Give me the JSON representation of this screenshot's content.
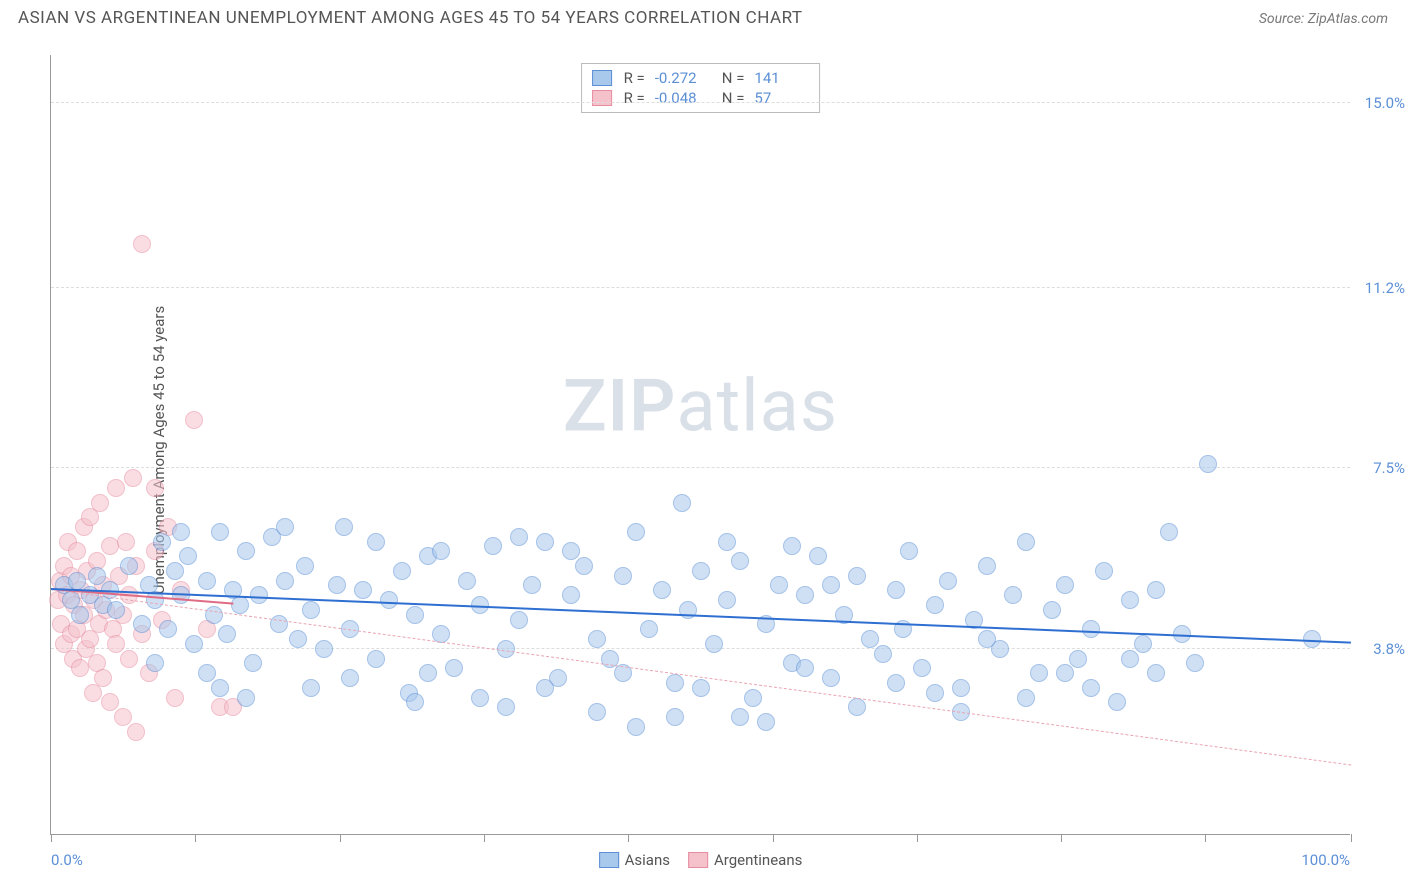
{
  "title": "ASIAN VS ARGENTINEAN UNEMPLOYMENT AMONG AGES 45 TO 54 YEARS CORRELATION CHART",
  "source": "Source: ZipAtlas.com",
  "watermark_a": "ZIP",
  "watermark_b": "atlas",
  "chart": {
    "type": "scatter",
    "y_axis_title": "Unemployment Among Ages 45 to 54 years",
    "x_min": 0.0,
    "x_max": 100.0,
    "y_min": 0.0,
    "y_max": 16.0,
    "x_label_min": "0.0%",
    "x_label_max": "100.0%",
    "y_gridlines": [
      {
        "value": 3.8,
        "label": "3.8%"
      },
      {
        "value": 7.5,
        "label": "7.5%"
      },
      {
        "value": 11.2,
        "label": "11.2%"
      },
      {
        "value": 15.0,
        "label": "15.0%"
      }
    ],
    "x_ticks": [
      0,
      11.1,
      22.2,
      33.3,
      44.4,
      55.5,
      66.6,
      77.7,
      88.8,
      100
    ],
    "point_radius": 9,
    "point_opacity": 0.55,
    "series": [
      {
        "name": "Asians",
        "legend_label": "Asians",
        "fill": "#a8c8ec",
        "stroke": "#5b8fd6",
        "r_value": "-0.272",
        "n_value": "141",
        "trend": {
          "x1": 0,
          "y1": 5.0,
          "x2": 100,
          "y2": 3.9,
          "width": 2.5,
          "dash": "solid",
          "color": "#2e6fd1"
        },
        "ext_trend": {
          "x1": 0,
          "y1": 5.0,
          "x2": 100,
          "y2": 1.4,
          "width": 1,
          "dash": "dashed",
          "color": "#e9a5b3"
        },
        "points": [
          [
            1,
            5.1
          ],
          [
            1.5,
            4.8
          ],
          [
            2,
            5.2
          ],
          [
            2.2,
            4.5
          ],
          [
            3,
            4.9
          ],
          [
            3.5,
            5.3
          ],
          [
            4,
            4.7
          ],
          [
            4.5,
            5.0
          ],
          [
            5,
            4.6
          ],
          [
            6,
            5.5
          ],
          [
            7,
            4.3
          ],
          [
            7.5,
            5.1
          ],
          [
            8,
            4.8
          ],
          [
            8.5,
            6.0
          ],
          [
            9,
            4.2
          ],
          [
            9.5,
            5.4
          ],
          [
            10,
            4.9
          ],
          [
            10.5,
            5.7
          ],
          [
            11,
            3.9
          ],
          [
            12,
            5.2
          ],
          [
            12.5,
            4.5
          ],
          [
            13,
            6.2
          ],
          [
            13.5,
            4.1
          ],
          [
            14,
            5.0
          ],
          [
            14.5,
            4.7
          ],
          [
            15,
            5.8
          ],
          [
            15.5,
            3.5
          ],
          [
            16,
            4.9
          ],
          [
            17,
            6.1
          ],
          [
            17.5,
            4.3
          ],
          [
            18,
            5.2
          ],
          [
            19,
            4.0
          ],
          [
            19.5,
            5.5
          ],
          [
            20,
            4.6
          ],
          [
            21,
            3.8
          ],
          [
            22,
            5.1
          ],
          [
            22.5,
            6.3
          ],
          [
            23,
            4.2
          ],
          [
            24,
            5.0
          ],
          [
            25,
            3.6
          ],
          [
            26,
            4.8
          ],
          [
            27,
            5.4
          ],
          [
            27.5,
            2.9
          ],
          [
            28,
            4.5
          ],
          [
            29,
            5.7
          ],
          [
            30,
            4.1
          ],
          [
            31,
            3.4
          ],
          [
            32,
            5.2
          ],
          [
            33,
            4.7
          ],
          [
            34,
            5.9
          ],
          [
            35,
            3.8
          ],
          [
            36,
            4.4
          ],
          [
            37,
            5.1
          ],
          [
            38,
            6.0
          ],
          [
            39,
            3.2
          ],
          [
            40,
            4.9
          ],
          [
            41,
            5.5
          ],
          [
            42,
            4.0
          ],
          [
            43,
            3.6
          ],
          [
            44,
            5.3
          ],
          [
            45,
            6.2
          ],
          [
            46,
            4.2
          ],
          [
            47,
            5.0
          ],
          [
            48,
            3.1
          ],
          [
            48.5,
            6.8
          ],
          [
            49,
            4.6
          ],
          [
            50,
            5.4
          ],
          [
            51,
            3.9
          ],
          [
            52,
            4.8
          ],
          [
            53,
            5.6
          ],
          [
            54,
            2.8
          ],
          [
            55,
            4.3
          ],
          [
            56,
            5.1
          ],
          [
            57,
            3.5
          ],
          [
            58,
            4.9
          ],
          [
            59,
            5.7
          ],
          [
            60,
            3.2
          ],
          [
            61,
            4.5
          ],
          [
            62,
            5.3
          ],
          [
            63,
            4.0
          ],
          [
            64,
            3.7
          ],
          [
            65,
            5.0
          ],
          [
            65.5,
            4.2
          ],
          [
            66,
            5.8
          ],
          [
            67,
            3.4
          ],
          [
            68,
            4.7
          ],
          [
            69,
            5.2
          ],
          [
            70,
            3.0
          ],
          [
            71,
            4.4
          ],
          [
            72,
            5.5
          ],
          [
            73,
            3.8
          ],
          [
            74,
            4.9
          ],
          [
            75,
            6.0
          ],
          [
            76,
            3.3
          ],
          [
            77,
            4.6
          ],
          [
            78,
            5.1
          ],
          [
            79,
            3.6
          ],
          [
            80,
            4.2
          ],
          [
            81,
            5.4
          ],
          [
            82,
            2.7
          ],
          [
            83,
            4.8
          ],
          [
            84,
            3.9
          ],
          [
            85,
            5.0
          ],
          [
            86,
            6.2
          ],
          [
            87,
            4.1
          ],
          [
            88,
            3.5
          ],
          [
            89,
            7.6
          ],
          [
            97,
            4.0
          ],
          [
            42,
            2.5
          ],
          [
            53,
            2.4
          ],
          [
            62,
            2.6
          ],
          [
            70,
            2.5
          ],
          [
            55,
            2.3
          ],
          [
            35,
            2.6
          ],
          [
            48,
            2.4
          ],
          [
            75,
            2.8
          ],
          [
            80,
            3.0
          ],
          [
            15,
            2.8
          ],
          [
            20,
            3.0
          ],
          [
            28,
            2.7
          ],
          [
            33,
            2.8
          ],
          [
            68,
            2.9
          ],
          [
            45,
            2.2
          ],
          [
            57,
            5.9
          ],
          [
            38,
            3.0
          ],
          [
            25,
            6.0
          ],
          [
            18,
            6.3
          ],
          [
            30,
            5.8
          ],
          [
            13,
            3.0
          ],
          [
            50,
            3.0
          ],
          [
            60,
            5.1
          ],
          [
            40,
            5.8
          ],
          [
            23,
            3.2
          ],
          [
            72,
            4.0
          ],
          [
            78,
            3.3
          ],
          [
            83,
            3.6
          ],
          [
            85,
            3.3
          ],
          [
            65,
            3.1
          ],
          [
            58,
            3.4
          ],
          [
            44,
            3.3
          ],
          [
            52,
            6.0
          ],
          [
            36,
            6.1
          ],
          [
            29,
            3.3
          ],
          [
            10,
            6.2
          ],
          [
            12,
            3.3
          ],
          [
            8,
            3.5
          ]
        ]
      },
      {
        "name": "Argentineans",
        "legend_label": "Argentineans",
        "fill": "#f5c2cc",
        "stroke": "#e88ca0",
        "r_value": "-0.048",
        "n_value": "57",
        "trend": {
          "x1": 0,
          "y1": 5.0,
          "x2": 14,
          "y2": 4.7,
          "width": 2.5,
          "dash": "solid",
          "color": "#e06b85"
        },
        "points": [
          [
            0.5,
            4.8
          ],
          [
            0.7,
            5.2
          ],
          [
            0.8,
            4.3
          ],
          [
            1.0,
            5.5
          ],
          [
            1.0,
            3.9
          ],
          [
            1.2,
            4.9
          ],
          [
            1.3,
            6.0
          ],
          [
            1.5,
            4.1
          ],
          [
            1.5,
            5.3
          ],
          [
            1.7,
            3.6
          ],
          [
            1.8,
            4.7
          ],
          [
            2.0,
            5.8
          ],
          [
            2.0,
            4.2
          ],
          [
            2.2,
            3.4
          ],
          [
            2.3,
            5.0
          ],
          [
            2.5,
            6.3
          ],
          [
            2.5,
            4.5
          ],
          [
            2.7,
            3.8
          ],
          [
            2.8,
            5.4
          ],
          [
            3.0,
            4.0
          ],
          [
            3.0,
            6.5
          ],
          [
            3.2,
            2.9
          ],
          [
            3.3,
            4.8
          ],
          [
            3.5,
            5.6
          ],
          [
            3.5,
            3.5
          ],
          [
            3.7,
            4.3
          ],
          [
            3.8,
            6.8
          ],
          [
            4.0,
            5.1
          ],
          [
            4.0,
            3.2
          ],
          [
            4.2,
            4.6
          ],
          [
            4.5,
            5.9
          ],
          [
            4.5,
            2.7
          ],
          [
            4.8,
            4.2
          ],
          [
            5.0,
            7.1
          ],
          [
            5.0,
            3.9
          ],
          [
            5.2,
            5.3
          ],
          [
            5.5,
            4.5
          ],
          [
            5.5,
            2.4
          ],
          [
            5.8,
            6.0
          ],
          [
            6.0,
            3.6
          ],
          [
            6.0,
            4.9
          ],
          [
            6.3,
            7.3
          ],
          [
            6.5,
            5.5
          ],
          [
            6.5,
            2.1
          ],
          [
            7.0,
            4.1
          ],
          [
            7.0,
            12.1
          ],
          [
            7.5,
            3.3
          ],
          [
            8.0,
            5.8
          ],
          [
            8.0,
            7.1
          ],
          [
            8.5,
            4.4
          ],
          [
            9.0,
            6.3
          ],
          [
            9.5,
            2.8
          ],
          [
            10.0,
            5.0
          ],
          [
            11.0,
            8.5
          ],
          [
            12.0,
            4.2
          ],
          [
            13.0,
            2.6
          ],
          [
            14.0,
            2.6
          ]
        ]
      }
    ]
  }
}
